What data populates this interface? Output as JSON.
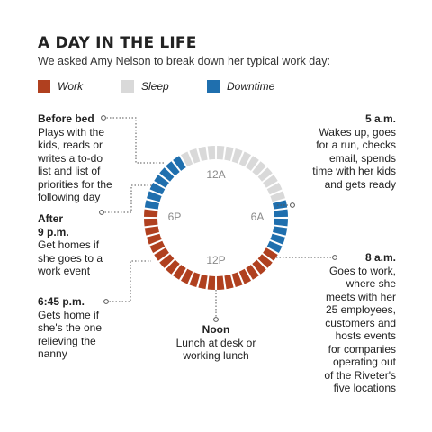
{
  "header": {
    "title": "A DAY IN THE LIFE",
    "subtitle": "We asked Amy Nelson to break down her typical work day:"
  },
  "legend": [
    {
      "label": "Work",
      "color": "#b0401f"
    },
    {
      "label": "Sleep",
      "color": "#d9d9d9"
    },
    {
      "label": "Downtime",
      "color": "#1f6fae"
    }
  ],
  "chart_data": {
    "type": "radial-clock",
    "hour_labels": [
      "12A",
      "6A",
      "12P",
      "6P"
    ],
    "segments_per_hour": 2,
    "total_segments": 48,
    "blocks": [
      {
        "category": "Sleep",
        "start_hour": 0,
        "end_hour": 5
      },
      {
        "category": "Downtime",
        "start_hour": 5,
        "end_hour": 8
      },
      {
        "category": "Work",
        "start_hour": 8,
        "end_hour": 18.75
      },
      {
        "category": "Downtime",
        "start_hour": 18.75,
        "end_hour": 22
      },
      {
        "category": "Sleep",
        "start_hour": 22,
        "end_hour": 24
      }
    ]
  },
  "annotations": {
    "before_bed": {
      "time": "Before bed",
      "text": "Plays with the\nkids, reads or\nwrites a to-do\nlist and list of\npriorities for the\nfollowing day"
    },
    "after_9": {
      "time_a": "After",
      "time_b": "9 p.m.",
      "text": "Get homes if\nshe goes to a\nwork event"
    },
    "pm_645": {
      "time": "6:45 p.m.",
      "text": "Gets home if\nshe's the one\nrelieving the\nnanny"
    },
    "noon": {
      "time": "Noon",
      "text": "Lunch at desk or\nworking lunch"
    },
    "am_5": {
      "time": "5 a.m.",
      "text": "Wakes up, goes\nfor a run, checks\nemail, spends\ntime with her kids\nand gets ready"
    },
    "am_8": {
      "time": "8 a.m.",
      "text": "Goes to work,\nwhere she\nmeets with her\n25 employees,\ncustomers and\nhosts events\nfor companies\noperating out\nof the Riveter's\nfive locations"
    }
  }
}
